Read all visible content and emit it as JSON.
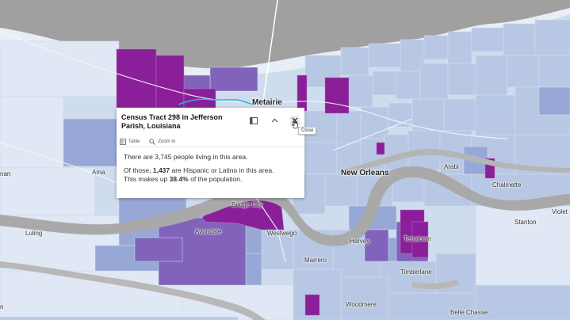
{
  "popup": {
    "title": "Census Tract 298 in Jefferson Parish, Louisiana",
    "actions": {
      "table": "Table",
      "zoom": "Zoom to"
    },
    "close_tooltip": "Close",
    "line1": "There are 3,745 people living in this area.",
    "line2_pre": "Of those, ",
    "line2_num": "1,437",
    "line2_post": " are Hispanic or Latino in this area.",
    "line3_pre": "This makes up ",
    "line3_pct": "38.4%",
    "line3_post": " of the population."
  },
  "places": {
    "metairie": "Metairie",
    "new_orleans": "New Orleans",
    "bridge_city": "Bridge City",
    "ama": "Ama",
    "luling": "Luling",
    "avondale": "Avondale",
    "westwego": "Westwego",
    "marrero": "Marrero",
    "harvey": "Harvey",
    "terrytown": "Terrytown",
    "timberlane": "Timberlane",
    "woodmere": "Woodmere",
    "belle_chasse": "Belle Chasse",
    "arabi": "Arabi",
    "chalmette": "Chalmette",
    "stanton": "Stanton",
    "violet": "Violet",
    "left_edge": "nan",
    "left_edge2": "n"
  },
  "colors": {
    "water": "#9a9a9a",
    "low": "#dce7f3",
    "mid": "#a7b8dc",
    "high": "#7c5fb5",
    "highest": "#8a1f9a"
  }
}
